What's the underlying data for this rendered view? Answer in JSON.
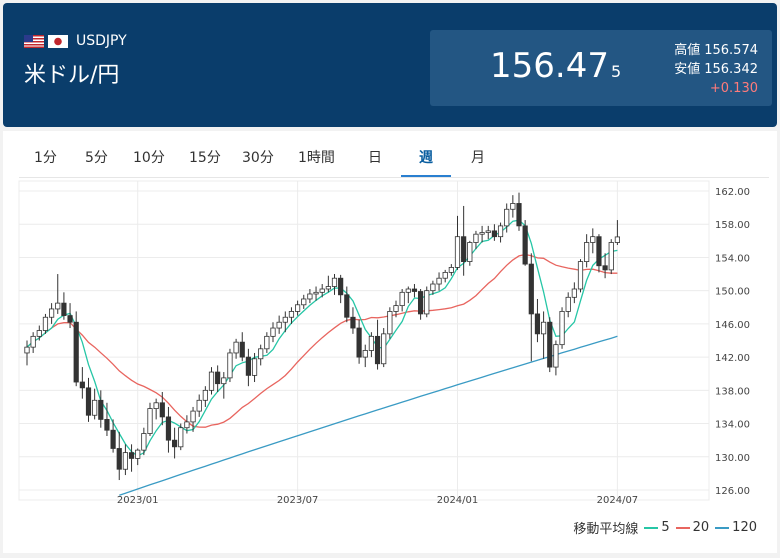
{
  "header": {
    "pair_code": "USDJPY",
    "pair_name": "米ドル/円",
    "price_main": "156.47",
    "price_sub": "5",
    "high_label": "高値",
    "high_value": "156.574",
    "low_label": "安値",
    "low_value": "156.342",
    "change": "+0.130",
    "flags": [
      "us-flag",
      "japan-flag"
    ]
  },
  "tabs": [
    {
      "label": "1分",
      "active": false
    },
    {
      "label": "5分",
      "active": false
    },
    {
      "label": "10分",
      "active": false
    },
    {
      "label": "15分",
      "active": false
    },
    {
      "label": "30分",
      "active": false
    },
    {
      "label": "1時間",
      "active": false
    },
    {
      "label": "日",
      "active": false
    },
    {
      "label": "週",
      "active": true
    },
    {
      "label": "月",
      "active": false
    }
  ],
  "legend": {
    "title": "移動平均線",
    "items": [
      {
        "label": "5",
        "color": "#26c6a6"
      },
      {
        "label": "20",
        "color": "#e8655f"
      },
      {
        "label": "120",
        "color": "#3a9bc4"
      }
    ]
  },
  "colors": {
    "header_bg": "#0a3d6b",
    "quote_bg": "#235683",
    "change": "#ff7b7b",
    "candle": "#333333"
  },
  "chart_data": {
    "type": "candlestick",
    "title": "",
    "xlabel": "",
    "ylabel": "",
    "ylim": [
      126,
      162
    ],
    "ytick_labels": [
      "162.00",
      "158.00",
      "154.00",
      "150.00",
      "146.00",
      "142.00",
      "138.00",
      "134.00",
      "130.00",
      "126.00"
    ],
    "xtick_labels": [
      "2023/01",
      "2023/07",
      "2024/01",
      "2024/07"
    ],
    "grid": true,
    "x_start_date": "2022/08/27",
    "interval": "weekly",
    "candles": [
      [
        142.5,
        144.0,
        141.0,
        143.2
      ],
      [
        143.2,
        145.0,
        142.5,
        144.5
      ],
      [
        144.5,
        145.8,
        144.0,
        145.2
      ],
      [
        145.2,
        147.2,
        144.8,
        146.8
      ],
      [
        146.8,
        148.5,
        146.0,
        147.8
      ],
      [
        147.8,
        152.0,
        147.2,
        148.5
      ],
      [
        148.5,
        149.8,
        146.5,
        147.0
      ],
      [
        147.0,
        148.5,
        145.5,
        146.2
      ],
      [
        146.2,
        147.5,
        138.5,
        139.0
      ],
      [
        139.0,
        140.8,
        137.0,
        138.3
      ],
      [
        138.3,
        139.5,
        134.2,
        135.0
      ],
      [
        135.0,
        138.2,
        134.5,
        136.8
      ],
      [
        136.8,
        138.0,
        133.5,
        134.5
      ],
      [
        134.5,
        136.5,
        132.5,
        133.2
      ],
      [
        133.2,
        134.5,
        130.5,
        131.0
      ],
      [
        131.0,
        133.0,
        127.2,
        128.5
      ],
      [
        128.5,
        131.5,
        127.8,
        130.5
      ],
      [
        130.5,
        131.5,
        128.2,
        129.8
      ],
      [
        129.8,
        131.0,
        129.0,
        130.8
      ],
      [
        130.8,
        133.5,
        130.2,
        132.8
      ],
      [
        132.8,
        136.5,
        132.5,
        135.8
      ],
      [
        135.8,
        137.0,
        134.5,
        136.5
      ],
      [
        136.5,
        137.8,
        133.8,
        134.8
      ],
      [
        134.8,
        136.0,
        130.5,
        132.0
      ],
      [
        132.0,
        133.5,
        129.8,
        131.2
      ],
      [
        131.2,
        134.0,
        130.8,
        133.5
      ],
      [
        133.5,
        135.0,
        132.8,
        134.2
      ],
      [
        134.2,
        136.0,
        133.0,
        135.5
      ],
      [
        135.5,
        137.5,
        134.8,
        136.8
      ],
      [
        136.8,
        138.5,
        136.0,
        138.0
      ],
      [
        138.0,
        140.8,
        137.5,
        140.2
      ],
      [
        140.2,
        141.0,
        137.8,
        138.8
      ],
      [
        138.8,
        140.2,
        137.0,
        139.5
      ],
      [
        139.5,
        143.0,
        139.0,
        142.5
      ],
      [
        142.5,
        144.2,
        141.8,
        143.8
      ],
      [
        143.8,
        145.0,
        141.5,
        142.0
      ],
      [
        142.0,
        143.0,
        138.5,
        139.8
      ],
      [
        139.8,
        142.5,
        139.0,
        141.8
      ],
      [
        141.8,
        143.5,
        141.0,
        143.0
      ],
      [
        143.0,
        145.0,
        142.5,
        144.5
      ],
      [
        144.5,
        146.2,
        143.8,
        145.5
      ],
      [
        145.5,
        147.0,
        144.8,
        146.2
      ],
      [
        146.2,
        147.5,
        145.0,
        146.8
      ],
      [
        146.8,
        148.0,
        146.0,
        147.5
      ],
      [
        147.5,
        148.8,
        147.0,
        148.3
      ],
      [
        148.3,
        149.5,
        147.8,
        149.0
      ],
      [
        149.0,
        150.2,
        148.5,
        149.6
      ],
      [
        149.6,
        150.5,
        148.8,
        149.8
      ],
      [
        149.8,
        150.8,
        149.2,
        150.2
      ],
      [
        150.2,
        151.8,
        149.8,
        150.5
      ],
      [
        150.5,
        152.0,
        149.5,
        151.5
      ],
      [
        151.5,
        151.9,
        148.5,
        149.5
      ],
      [
        149.5,
        150.5,
        146.2,
        146.8
      ],
      [
        146.8,
        148.0,
        144.8,
        145.5
      ],
      [
        145.5,
        146.5,
        141.2,
        142.0
      ],
      [
        142.0,
        143.5,
        140.8,
        142.8
      ],
      [
        142.8,
        145.0,
        142.0,
        144.5
      ],
      [
        144.5,
        146.5,
        140.5,
        141.2
      ],
      [
        141.2,
        145.5,
        140.8,
        144.8
      ],
      [
        144.8,
        148.0,
        144.2,
        147.5
      ],
      [
        147.5,
        148.8,
        146.8,
        148.2
      ],
      [
        148.2,
        150.2,
        147.5,
        149.8
      ],
      [
        149.8,
        150.5,
        148.5,
        150.2
      ],
      [
        150.2,
        150.8,
        149.2,
        149.9
      ],
      [
        149.9,
        150.2,
        146.5,
        147.2
      ],
      [
        147.2,
        150.5,
        146.8,
        150.0
      ],
      [
        150.0,
        151.2,
        149.5,
        150.8
      ],
      [
        150.8,
        152.2,
        150.0,
        151.5
      ],
      [
        151.5,
        152.5,
        151.0,
        152.2
      ],
      [
        152.2,
        153.2,
        151.8,
        152.8
      ],
      [
        152.8,
        159.0,
        152.5,
        156.5
      ],
      [
        156.5,
        160.2,
        151.8,
        153.5
      ],
      [
        153.5,
        156.0,
        153.0,
        155.8
      ],
      [
        155.8,
        157.2,
        155.0,
        156.8
      ],
      [
        156.8,
        157.8,
        155.8,
        157.0
      ],
      [
        157.0,
        157.8,
        156.2,
        157.2
      ],
      [
        157.2,
        158.0,
        156.0,
        156.5
      ],
      [
        156.5,
        158.2,
        155.8,
        157.8
      ],
      [
        157.8,
        160.5,
        157.0,
        159.8
      ],
      [
        159.8,
        161.5,
        158.8,
        160.5
      ],
      [
        160.5,
        161.8,
        157.2,
        157.8
      ],
      [
        157.8,
        158.5,
        153.0,
        153.2
      ],
      [
        153.2,
        154.5,
        141.5,
        147.2
      ],
      [
        147.2,
        149.0,
        143.8,
        144.8
      ],
      [
        144.8,
        147.5,
        141.8,
        146.2
      ],
      [
        146.2,
        146.8,
        140.2,
        140.8
      ],
      [
        140.8,
        144.0,
        139.8,
        143.5
      ],
      [
        143.5,
        148.0,
        143.0,
        147.5
      ],
      [
        147.5,
        149.8,
        146.8,
        149.2
      ],
      [
        149.2,
        151.0,
        148.5,
        150.2
      ],
      [
        150.2,
        153.8,
        149.8,
        153.5
      ],
      [
        153.5,
        156.8,
        152.8,
        155.8
      ],
      [
        155.8,
        157.5,
        154.5,
        156.5
      ],
      [
        156.5,
        156.8,
        152.2,
        153.0
      ],
      [
        153.0,
        154.5,
        151.5,
        152.5
      ],
      [
        152.5,
        156.2,
        152.0,
        155.8
      ],
      [
        155.8,
        158.5,
        155.5,
        156.47
      ]
    ],
    "series": [
      {
        "name": "5",
        "color": "#26c6a6"
      },
      {
        "name": "20",
        "color": "#e8655f"
      },
      {
        "name": "120",
        "color": "#3a9bc4"
      }
    ]
  }
}
